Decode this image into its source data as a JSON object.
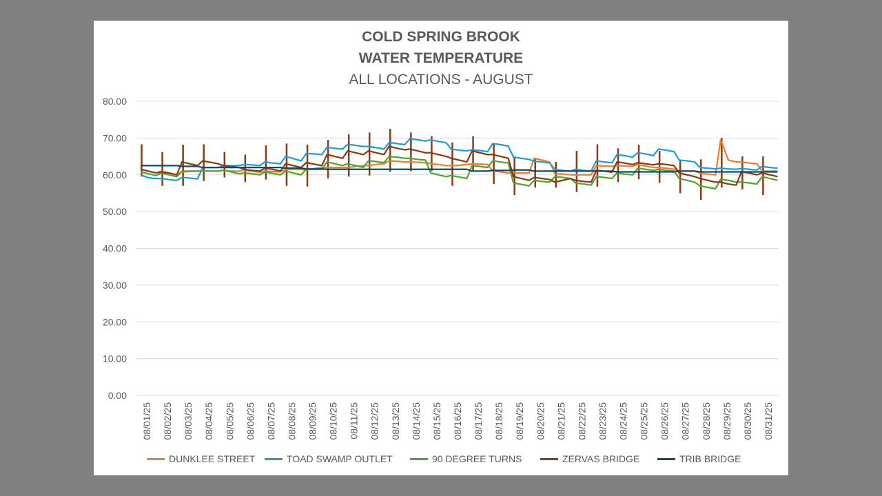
{
  "chart_data": {
    "type": "line",
    "title": "COLD SPRING BROOK",
    "subtitle": "WATER TEMPERATURE",
    "subtitle2": "ALL LOCATIONS - AUGUST",
    "ylim": [
      0,
      80
    ],
    "yticks": [
      "0.00",
      "10.00",
      "20.00",
      "30.00",
      "40.00",
      "50.00",
      "60.00",
      "70.00",
      "80.00"
    ],
    "categories": [
      "08/01/25",
      "08/02/25",
      "08/03/25",
      "08/04/25",
      "08/05/25",
      "08/06/25",
      "08/07/25",
      "08/08/25",
      "08/09/25",
      "08/10/25",
      "08/11/25",
      "08/12/25",
      "08/13/25",
      "08/14/25",
      "08/15/25",
      "08/16/25",
      "08/17/25",
      "08/18/25",
      "08/19/25",
      "08/20/25",
      "08/21/25",
      "08/22/25",
      "08/23/25",
      "08/24/25",
      "08/25/25",
      "08/26/25",
      "08/27/25",
      "08/28/25",
      "08/29/25",
      "08/30/25",
      "08/31/25"
    ],
    "series": [
      {
        "name": "DUNKLEE STREET",
        "color": "#ED7D31",
        "values": [
          [
            61.5,
            61.0,
            60.5
          ],
          [
            61.0,
            60.5,
            60.0
          ],
          [
            60.8,
            60.9,
            61.0
          ],
          [
            61.0,
            61.0,
            61.0
          ],
          [
            61.2,
            61.0,
            61.0
          ],
          [
            61.3,
            61.0,
            60.7
          ],
          [
            61.0,
            60.9,
            60.8
          ],
          [
            61.5,
            61.5,
            61.5
          ],
          [
            61.3,
            61.7,
            62.0
          ],
          [
            62.0,
            62.0,
            62.0
          ],
          [
            62.0,
            62.3,
            62.5
          ],
          [
            62.5,
            62.8,
            63.0
          ],
          [
            63.8,
            63.7,
            63.5
          ],
          [
            63.5,
            63.4,
            63.3
          ],
          [
            63.0,
            62.8,
            62.5
          ],
          [
            62.5,
            62.6,
            62.8
          ],
          [
            63.0,
            62.9,
            62.8
          ],
          [
            61.0,
            60.8,
            60.5
          ],
          [
            60.5,
            60.5,
            60.5
          ],
          [
            64.5,
            64.0,
            63.5
          ],
          [
            60.3,
            60.2,
            60.0
          ],
          [
            60.0,
            60.0,
            60.0
          ],
          [
            62.5,
            62.4,
            62.3
          ],
          [
            62.5,
            62.4,
            62.3
          ],
          [
            62.8,
            62.4,
            62.0
          ],
          [
            62.0,
            61.8,
            61.5
          ],
          [
            61.0,
            61.0,
            61.0
          ],
          [
            60.5,
            60.2,
            60.0
          ],
          [
            69.5,
            64.0,
            63.5
          ],
          [
            63.5,
            63.2,
            63.0
          ],
          [
            61.0,
            61.0,
            61.0
          ]
        ]
      },
      {
        "name": "TOAD SWAMP OUTLET",
        "color": "#1F9ED8",
        "values": [
          [
            60.0,
            59.2,
            59.0
          ],
          [
            59.0,
            58.7,
            58.5
          ],
          [
            59.3,
            59.1,
            58.9
          ],
          [
            62.0,
            62.0,
            62.0
          ],
          [
            62.5,
            62.5,
            62.5
          ],
          [
            62.8,
            62.7,
            62.5
          ],
          [
            63.5,
            63.2,
            63.0
          ],
          [
            65.0,
            64.4,
            63.8
          ],
          [
            65.8,
            65.7,
            65.5
          ],
          [
            67.5,
            67.2,
            67.0
          ],
          [
            68.3,
            68.0,
            67.7
          ],
          [
            67.7,
            67.4,
            67.0
          ],
          [
            68.8,
            68.5,
            68.2
          ],
          [
            69.8,
            69.5,
            69.2
          ],
          [
            69.5,
            69.1,
            68.7
          ],
          [
            67.0,
            66.7,
            66.5
          ],
          [
            66.8,
            66.6,
            66.3
          ],
          [
            68.5,
            68.2,
            67.8
          ],
          [
            64.8,
            64.5,
            64.2
          ],
          [
            63.7,
            63.5,
            63.2
          ],
          [
            61.5,
            61.2,
            61.0
          ],
          [
            61.5,
            61.2,
            61.0
          ],
          [
            63.8,
            63.5,
            63.3
          ],
          [
            65.5,
            65.2,
            64.8
          ],
          [
            66.0,
            65.7,
            65.2
          ],
          [
            67.0,
            66.7,
            66.3
          ],
          [
            64.0,
            63.8,
            63.5
          ],
          [
            62.0,
            61.8,
            61.6
          ],
          [
            61.8,
            61.6,
            61.5
          ],
          [
            61.7,
            61.5,
            61.3
          ],
          [
            62.3,
            62.0,
            61.8
          ]
        ]
      },
      {
        "name": "90 DEGREE TURNS",
        "color": "#4EA72E",
        "values": [
          [
            60.8,
            60.3,
            59.8
          ],
          [
            60.5,
            60.0,
            59.5
          ],
          [
            61.0,
            61.0,
            61.0
          ],
          [
            61.0,
            61.0,
            61.0
          ],
          [
            61.3,
            60.8,
            60.3
          ],
          [
            60.5,
            60.3,
            60.0
          ],
          [
            60.8,
            60.4,
            60.0
          ],
          [
            61.0,
            60.5,
            60.0
          ],
          [
            61.5,
            61.5,
            61.5
          ],
          [
            63.5,
            63.0,
            62.5
          ],
          [
            63.0,
            62.5,
            62.0
          ],
          [
            63.8,
            63.6,
            63.3
          ],
          [
            65.0,
            64.8,
            64.5
          ],
          [
            64.5,
            64.2,
            64.0
          ],
          [
            60.5,
            60.0,
            59.5
          ],
          [
            59.8,
            59.4,
            59.0
          ],
          [
            62.5,
            62.3,
            62.0
          ],
          [
            63.8,
            63.5,
            63.2
          ],
          [
            57.8,
            57.4,
            57.0
          ],
          [
            58.5,
            58.2,
            58.0
          ],
          [
            59.5,
            59.3,
            59.0
          ],
          [
            57.8,
            57.5,
            57.2
          ],
          [
            59.5,
            59.3,
            59.0
          ],
          [
            60.5,
            60.2,
            60.0
          ],
          [
            61.8,
            61.5,
            61.2
          ],
          [
            61.5,
            61.2,
            61.0
          ],
          [
            59.0,
            58.5,
            58.0
          ],
          [
            57.0,
            56.6,
            56.2
          ],
          [
            58.8,
            58.5,
            58.0
          ],
          [
            58.0,
            57.8,
            57.5
          ],
          [
            59.5,
            59.0,
            58.5
          ]
        ]
      },
      {
        "name": "ZERVAS BRIDGE",
        "color": "#8B3A13",
        "values": [
          [
            61.5,
            61.0,
            60.5
          ],
          [
            60.8,
            60.5,
            60.0
          ],
          [
            63.5,
            63.0,
            62.5
          ],
          [
            63.8,
            63.4,
            63.0
          ],
          [
            62.5,
            62.2,
            62.0
          ],
          [
            61.5,
            61.2,
            61.0
          ],
          [
            61.8,
            61.5,
            61.0
          ],
          [
            63.0,
            62.5,
            62.0
          ],
          [
            63.3,
            62.9,
            62.5
          ],
          [
            65.5,
            65.0,
            64.5
          ],
          [
            66.5,
            66.0,
            65.5
          ],
          [
            66.5,
            66.0,
            65.5
          ],
          [
            67.8,
            67.2,
            66.8
          ],
          [
            67.0,
            66.5,
            66.0
          ],
          [
            66.0,
            65.5,
            65.0
          ],
          [
            64.5,
            64.0,
            63.5
          ],
          [
            66.5,
            66.0,
            65.5
          ],
          [
            65.5,
            65.0,
            64.5
          ],
          [
            59.5,
            59.0,
            58.5
          ],
          [
            59.3,
            59.0,
            58.7
          ],
          [
            58.0,
            58.5,
            59.0
          ],
          [
            58.5,
            58.2,
            58.0
          ],
          [
            61.2,
            61.0,
            60.7
          ],
          [
            63.5,
            63.2,
            62.8
          ],
          [
            63.3,
            63.0,
            62.7
          ],
          [
            63.0,
            62.8,
            62.5
          ],
          [
            60.5,
            60.0,
            59.5
          ],
          [
            59.0,
            58.5,
            58.0
          ],
          [
            58.0,
            57.5,
            57.2
          ],
          [
            60.8,
            60.5,
            60.0
          ],
          [
            60.5,
            60.0,
            59.5
          ]
        ]
      },
      {
        "name": "TRIB BRIDGE",
        "color": "#0E4A6B",
        "values": [
          [
            62.5,
            62.5,
            62.5
          ],
          [
            62.5,
            62.5,
            62.5
          ],
          [
            62.3,
            62.3,
            62.3
          ],
          [
            62.0,
            62.0,
            62.0
          ],
          [
            62.0,
            62.0,
            62.0
          ],
          [
            62.0,
            62.0,
            62.0
          ],
          [
            62.0,
            62.0,
            62.0
          ],
          [
            61.8,
            61.8,
            61.8
          ],
          [
            61.6,
            61.6,
            61.6
          ],
          [
            61.5,
            61.5,
            61.5
          ],
          [
            61.5,
            61.5,
            61.5
          ],
          [
            61.5,
            61.5,
            61.5
          ],
          [
            61.5,
            61.5,
            61.5
          ],
          [
            61.5,
            61.5,
            61.5
          ],
          [
            61.5,
            61.5,
            61.5
          ],
          [
            61.5,
            61.5,
            61.5
          ],
          [
            61.0,
            61.0,
            61.0
          ],
          [
            61.2,
            61.2,
            61.2
          ],
          [
            61.3,
            61.3,
            61.3
          ],
          [
            61.0,
            61.0,
            61.0
          ],
          [
            61.0,
            61.0,
            61.0
          ],
          [
            61.0,
            61.0,
            61.0
          ],
          [
            61.0,
            61.0,
            61.0
          ],
          [
            60.8,
            60.8,
            60.8
          ],
          [
            60.8,
            60.8,
            60.8
          ],
          [
            60.8,
            60.8,
            60.8
          ],
          [
            61.0,
            61.0,
            61.0
          ],
          [
            60.8,
            60.8,
            60.8
          ],
          [
            60.8,
            60.8,
            60.8
          ],
          [
            60.8,
            60.8,
            60.8
          ],
          [
            60.8,
            60.8,
            60.8
          ]
        ]
      }
    ],
    "daily_range": [
      [
        68.3,
        59.5
      ],
      [
        66.2,
        57.0
      ],
      [
        68.2,
        57.0
      ],
      [
        68.3,
        58.3
      ],
      [
        66.2,
        59.3
      ],
      [
        65.5,
        58.0
      ],
      [
        68.0,
        58.7
      ],
      [
        68.5,
        57.0
      ],
      [
        68.2,
        56.8
      ],
      [
        69.5,
        59.0
      ],
      [
        71.0,
        59.5
      ],
      [
        71.5,
        59.8
      ],
      [
        72.5,
        60.8
      ],
      [
        71.5,
        61.0
      ],
      [
        70.5,
        61.0
      ],
      [
        68.8,
        57.0
      ],
      [
        70.5,
        60.8
      ],
      [
        68.5,
        57.5
      ],
      [
        65.0,
        54.5
      ],
      [
        64.5,
        56.5
      ],
      [
        63.5,
        56.5
      ],
      [
        66.5,
        55.3
      ],
      [
        68.3,
        56.8
      ],
      [
        67.2,
        58.0
      ],
      [
        68.2,
        58.8
      ],
      [
        66.5,
        57.8
      ],
      [
        64.0,
        55.0
      ],
      [
        64.2,
        53.2
      ],
      [
        70.0,
        56.5
      ],
      [
        65.0,
        56.0
      ],
      [
        65.0,
        54.5
      ]
    ],
    "legend_position": "bottom"
  }
}
